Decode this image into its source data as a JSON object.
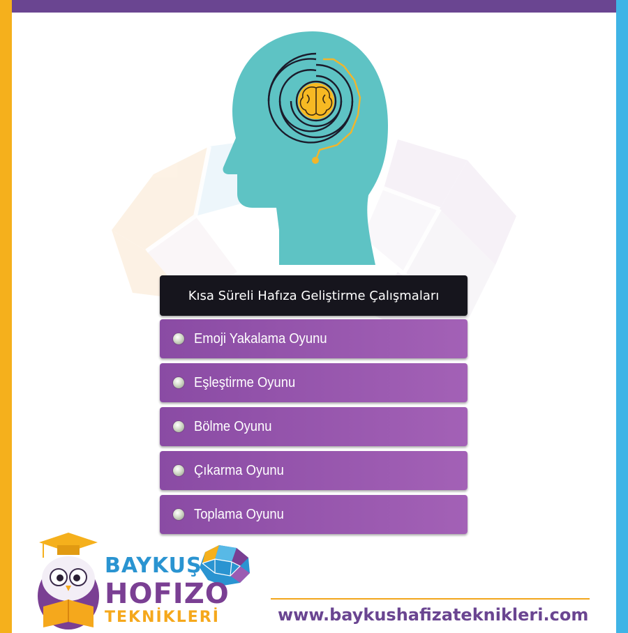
{
  "colors": {
    "top_bar": "#6a4591",
    "left_bar": "#f5b01c",
    "right_bar": "#3fb4e6",
    "title_bg": "#16151d",
    "item_bg": "#9356ae",
    "head": "#5ec3c4",
    "brain": "#f7b923"
  },
  "illustration": {
    "icon": "head-brain-maze-icon"
  },
  "heading": {
    "title": "Kısa Süreli Hafıza Geliştirme Çalışmaları"
  },
  "games": [
    {
      "label": "Emoji Yakalama Oyunu"
    },
    {
      "label": "Eşleştirme Oyunu"
    },
    {
      "label": "Bölme Oyunu"
    },
    {
      "label": "Çıkarma Oyunu"
    },
    {
      "label": "Toplama Oyunu"
    }
  ],
  "logo": {
    "line1": "BAYKUŞ",
    "line2": "HOFIZO",
    "line3": "TEKNİKLERİ",
    "icon": "owl-mascot-icon"
  },
  "footer": {
    "url": "www.baykushafizateknikleri.com"
  }
}
